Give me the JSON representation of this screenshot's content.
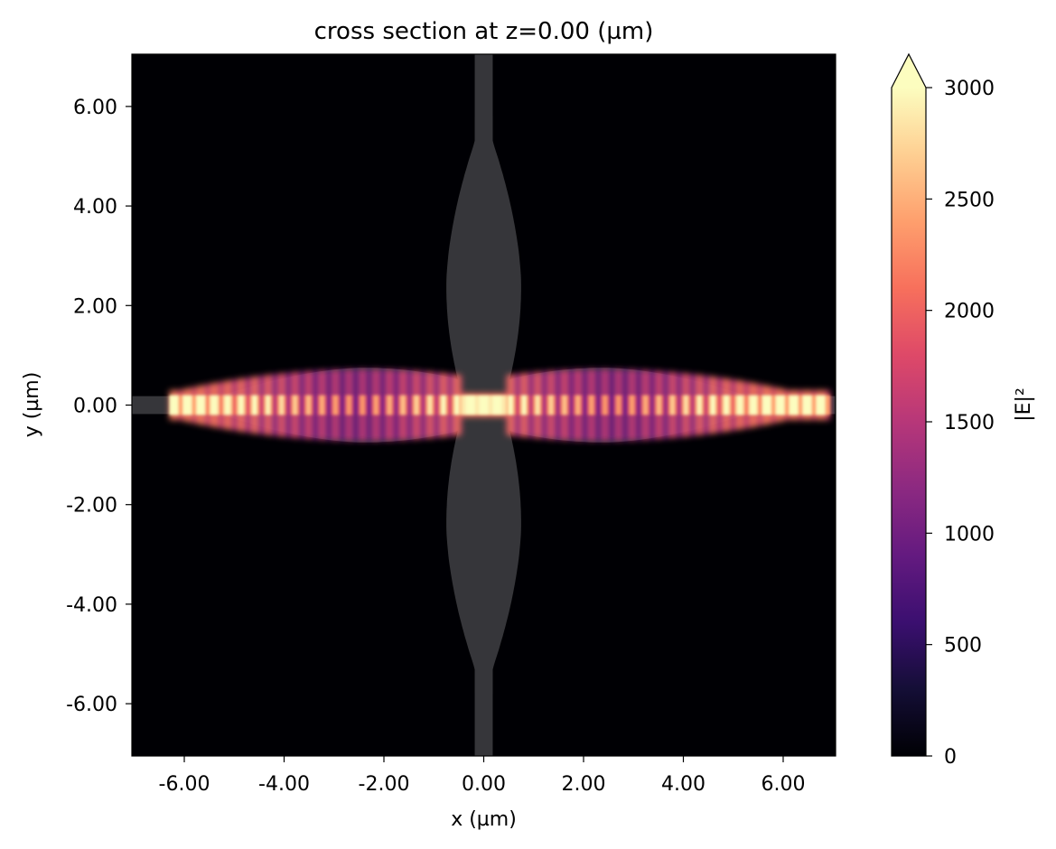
{
  "chart_data": {
    "type": "heatmap",
    "title": "cross section at z=0.00 (µm)",
    "xlabel": "x (µm)",
    "ylabel": "y (µm)",
    "xlim": [
      -7.05,
      7.05
    ],
    "ylim": [
      -7.05,
      7.05
    ],
    "xticks": [
      -6,
      -4,
      -2,
      0,
      2,
      4,
      6
    ],
    "yticks": [
      -6,
      -4,
      -2,
      0,
      2,
      4,
      6
    ],
    "xtick_labels": [
      "-6.00",
      "-4.00",
      "-2.00",
      "0.00",
      "2.00",
      "4.00",
      "6.00"
    ],
    "ytick_labels": [
      "-6.00",
      "-4.00",
      "-2.00",
      "0.00",
      "2.00",
      "4.00",
      "6.00"
    ],
    "colorbar": {
      "label": "|E|²",
      "colormap": "magma",
      "range": [
        0,
        3000
      ],
      "extend": "max",
      "ticks": [
        0,
        500,
        1000,
        1500,
        2000,
        2500,
        3000
      ],
      "tick_labels": [
        "0",
        "500",
        "1000",
        "1500",
        "2000",
        "2500",
        "3000"
      ]
    },
    "structure": {
      "color": "#36363a",
      "waveguide_width": 0.36,
      "waveguide_extent": [
        -7.05,
        7.05
      ],
      "lens_half_width_max": 0.75,
      "lens_y_range": [
        0.0,
        5.8
      ],
      "lens_center": 2.4
    },
    "field": {
      "x_range": [
        -6.3,
        6.9
      ],
      "peak_positions": [
        -5.9,
        0.0,
        6.2
      ],
      "max_value": 3000
    }
  }
}
